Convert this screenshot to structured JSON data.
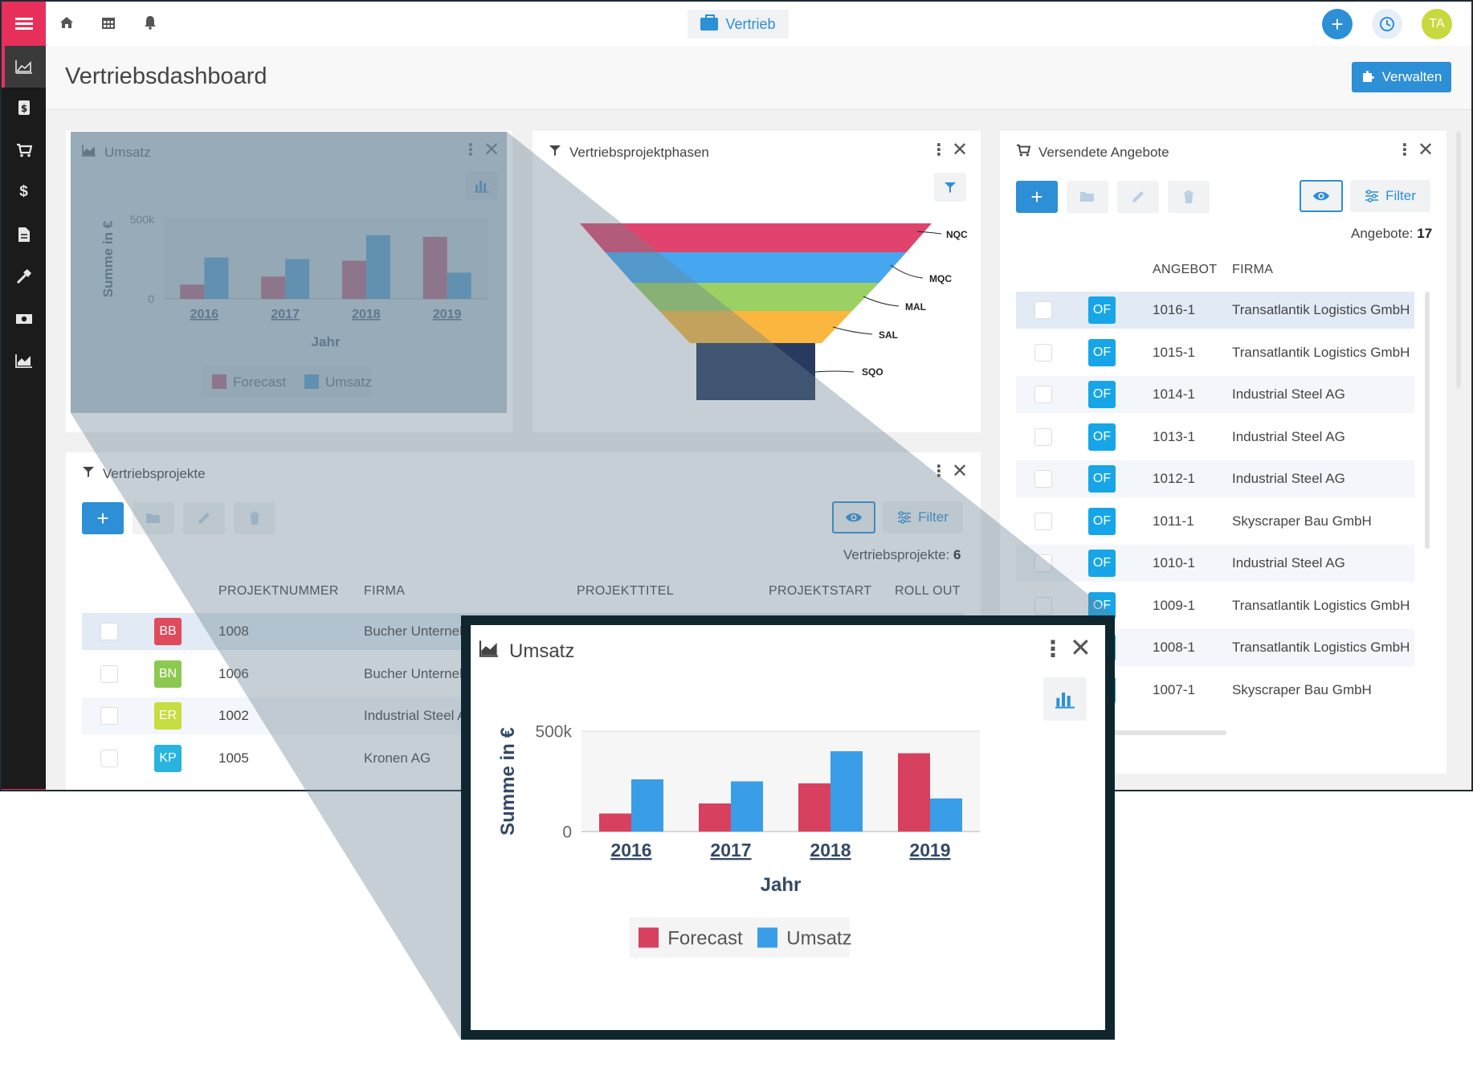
{
  "topbar": {
    "center_label": "Vertrieb",
    "avatar_initials": "TA"
  },
  "page": {
    "title": "Vertriebsdashboard",
    "manage_label": "Verwalten"
  },
  "umsatz": {
    "title": "Umsatz",
    "chart_data": {
      "type": "bar",
      "categories": [
        "2016",
        "2017",
        "2018",
        "2019"
      ],
      "series": [
        {
          "name": "Forecast",
          "values": [
            90000,
            140000,
            240000,
            390000
          ],
          "color": "#d84060"
        },
        {
          "name": "Umsatz",
          "values": [
            260000,
            250000,
            400000,
            165000
          ],
          "color": "#3a9de8"
        }
      ],
      "xlabel": "Jahr",
      "ylabel": "Summe in €",
      "ylim": [
        0,
        500000
      ],
      "yticks": [
        "0",
        "500k"
      ],
      "legend": "bottom"
    }
  },
  "funnel": {
    "title": "Vertriebsprojektphasen",
    "stages": [
      {
        "label": "NQC",
        "color": "#e0446e"
      },
      {
        "label": "MQC",
        "color": "#46a6ef"
      },
      {
        "label": "MAL",
        "color": "#9bd064"
      },
      {
        "label": "SAL",
        "color": "#fbb63f"
      },
      {
        "label": "SQO",
        "color": "#283a5e"
      }
    ]
  },
  "projects": {
    "title": "Vertriebsprojekte",
    "filter_label": "Filter",
    "count_label": "Vertriebsprojekte:",
    "count": "6",
    "columns": [
      "PROJEKTNUMMER",
      "FIRMA",
      "PROJEKTTITEL",
      "PROJEKTSTART",
      "ROLL OUT"
    ],
    "rows": [
      {
        "badge": "BB",
        "badge_color": "#e04a5d",
        "number": "1008",
        "firma": "Bucher Unterneh"
      },
      {
        "badge": "BN",
        "badge_color": "#8dc850",
        "number": "1006",
        "firma": "Bucher Unterneh"
      },
      {
        "badge": "ER",
        "badge_color": "#c7dd40",
        "number": "1002",
        "firma": "Industrial Steel A"
      },
      {
        "badge": "KP",
        "badge_color": "#28b4df",
        "number": "1005",
        "firma": "Kronen AG"
      }
    ]
  },
  "offers": {
    "title": "Versendete Angebote",
    "filter_label": "Filter",
    "count_label": "Angebote:",
    "count": "17",
    "columns": [
      "ANGEBOT",
      "FIRMA"
    ],
    "rows": [
      {
        "badge": "OF",
        "number": "1016-1",
        "firma": "Transatlantik Logistics GmbH"
      },
      {
        "badge": "OF",
        "number": "1015-1",
        "firma": "Transatlantik Logistics GmbH"
      },
      {
        "badge": "OF",
        "number": "1014-1",
        "firma": "Industrial Steel AG"
      },
      {
        "badge": "OF",
        "number": "1013-1",
        "firma": "Industrial Steel AG"
      },
      {
        "badge": "OF",
        "number": "1012-1",
        "firma": "Industrial Steel AG"
      },
      {
        "badge": "OF",
        "number": "1011-1",
        "firma": "Skyscraper Bau GmbH"
      },
      {
        "badge": "OF",
        "number": "1010-1",
        "firma": "Industrial Steel AG"
      },
      {
        "badge": "OF",
        "number": "1009-1",
        "firma": "Transatlantik Logistics GmbH"
      },
      {
        "badge": "OF",
        "number": "1008-1",
        "firma": "Transatlantik Logistics GmbH"
      },
      {
        "badge": "OF",
        "number": "1007-1",
        "firma": "Skyscraper Bau GmbH"
      }
    ]
  },
  "icons": {
    "sidebar": [
      "dashboard-icon",
      "document-dollar-icon",
      "cart-icon",
      "dollar-icon",
      "file-icon",
      "hammer-icon",
      "money-icon",
      "area-chart-icon"
    ],
    "topbar": [
      "home-icon",
      "calendar-icon",
      "bell-icon",
      "briefcase-icon",
      "plus-icon",
      "history-icon"
    ]
  },
  "colors": {
    "accent": "#2d8fd6",
    "brand": "#e8305a",
    "sidebar": "#1b1b1b",
    "zoom_frame": "#10262f"
  }
}
